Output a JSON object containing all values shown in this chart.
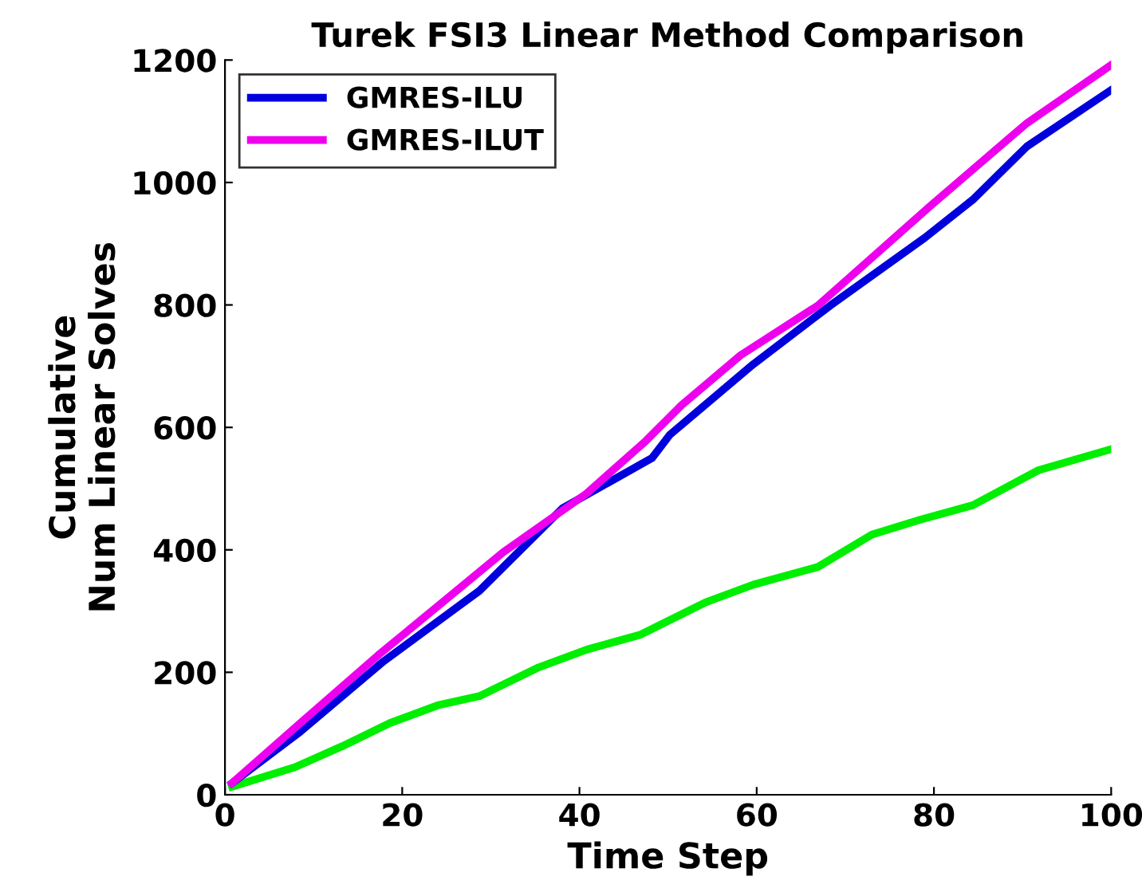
{
  "chart_data": {
    "type": "line",
    "title": "Turek FSI3 Linear Method Comparison",
    "xlabel": "Time Step",
    "ylabel": "Cumulative\nNum Linear Solves",
    "xlim": [
      0,
      100
    ],
    "ylim": [
      0,
      1200
    ],
    "xticks": [
      0,
      20,
      40,
      60,
      80,
      100
    ],
    "yticks": [
      0,
      200,
      400,
      600,
      800,
      1000,
      1200
    ],
    "grid": false,
    "legend": "top left",
    "line_style": "solid",
    "marker": "none",
    "series": [
      {
        "color": "#00ee00",
        "x": [
          0.8,
          7.9,
          13.2,
          18.6,
          24,
          28.7,
          35.4,
          40.8,
          46.8,
          54.2,
          59.6,
          66.9,
          73,
          78.4,
          84.4,
          91.8,
          99.9
        ],
        "values": [
          13,
          45,
          79,
          117,
          146,
          161,
          208,
          237,
          261,
          314,
          343,
          372,
          425,
          449,
          473,
          530,
          564
        ]
      },
      {
        "name": "GMRES-ILU",
        "color": "#0000dd",
        "x": [
          0.8,
          8.5,
          17.9,
          28.7,
          38.1,
          48.2,
          50.2,
          59.6,
          68.3,
          79,
          84.4,
          90.5,
          99.9
        ],
        "values": [
          19,
          103,
          218,
          333,
          468,
          550,
          588,
          703,
          799,
          910,
          972,
          1059,
          1150
        ]
      },
      {
        "name": "GMRES-ILUT",
        "color": "#ee00ee",
        "x": [
          0.8,
          8.5,
          17.3,
          31.4,
          40.8,
          47.5,
          51.5,
          58.2,
          66.9,
          79.7,
          90.5,
          99.9
        ],
        "values": [
          19,
          117,
          228,
          396,
          492,
          578,
          636,
          718,
          799,
          963,
          1097,
          1191
        ]
      }
    ]
  }
}
